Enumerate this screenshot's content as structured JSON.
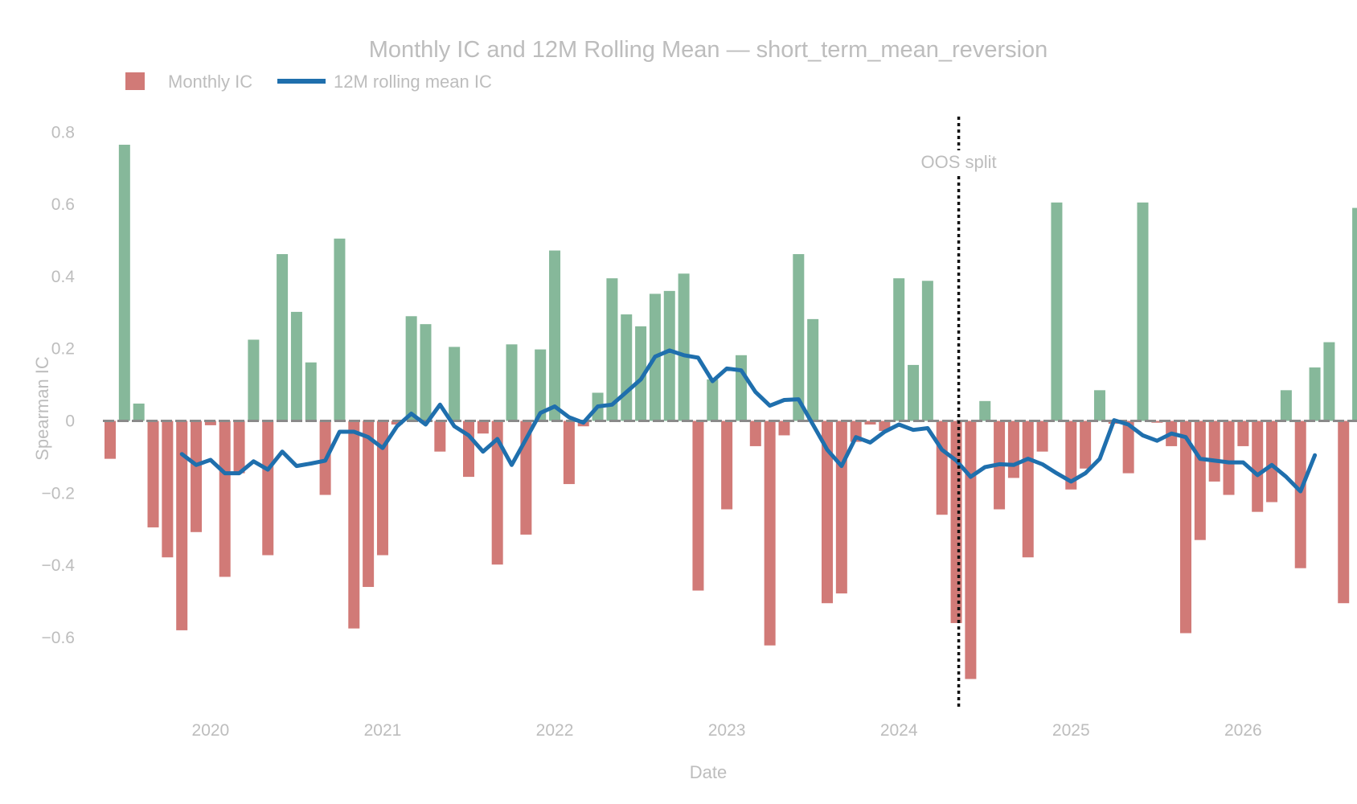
{
  "chart_data": {
    "type": "bar",
    "title": "Monthly IC and 12M Rolling Mean — short_term_mean_reversion",
    "xlabel": "Date",
    "ylabel": "Spearman IC",
    "ylim": [
      -0.8,
      0.85
    ],
    "yticks": [
      0.8,
      0.6,
      0.4,
      0.2,
      0,
      -0.2,
      -0.4,
      -0.6
    ],
    "ytick_labels": [
      "0.8",
      "0.6",
      "0.4",
      "0.2",
      "0",
      "−0.2",
      "−0.4",
      "−0.6"
    ],
    "xticks": [
      "2020-01",
      "2021-01",
      "2022-01",
      "2023-01",
      "2024-01",
      "2025-01",
      "2026-01"
    ],
    "xtick_labels": [
      "2020",
      "2021",
      "2022",
      "2023",
      "2024",
      "2025",
      "2026"
    ],
    "x_start": "2019-06",
    "legend": {
      "placement": "top-left",
      "items": [
        "Monthly IC",
        "12M rolling mean IC"
      ]
    },
    "annotation": {
      "label": "OOS split",
      "date": "2024-05"
    },
    "grid": false,
    "colors": {
      "positive": "#86b89a",
      "negative": "#d17a77",
      "rolling": "#1f6fad",
      "zero_line": "#8a8a8a",
      "text": "#bdbdbd",
      "split_line": "#111111"
    },
    "series": [
      {
        "name": "Monthly IC",
        "values": [
          -0.105,
          0.765,
          0.048,
          -0.295,
          -0.378,
          -0.58,
          -0.308,
          -0.012,
          -0.432,
          -0.145,
          0.225,
          -0.372,
          0.462,
          0.302,
          0.162,
          -0.205,
          0.505,
          -0.575,
          -0.46,
          -0.372,
          -0.01,
          0.29,
          0.268,
          -0.085,
          0.205,
          -0.155,
          -0.035,
          -0.398,
          0.212,
          -0.315,
          0.198,
          0.472,
          -0.175,
          -0.015,
          0.078,
          0.395,
          0.295,
          0.262,
          0.352,
          0.36,
          0.408,
          -0.47,
          0.115,
          -0.245,
          0.182,
          -0.07,
          -0.622,
          -0.04,
          0.462,
          0.282,
          -0.505,
          -0.478,
          -0.058,
          -0.01,
          -0.028,
          0.395,
          0.155,
          0.388,
          -0.26,
          -0.56,
          -0.715,
          0.055,
          -0.245,
          -0.158,
          -0.378,
          -0.085,
          0.605,
          -0.19,
          -0.132,
          0.085,
          -0.008,
          -0.145,
          0.605,
          -0.005,
          -0.07,
          -0.588,
          -0.33,
          -0.168,
          -0.205,
          -0.07,
          -0.252,
          -0.225,
          0.085,
          -0.408,
          0.148,
          0.218,
          -0.505,
          0.59
        ]
      },
      {
        "name": "12M rolling mean IC",
        "start": "2019-11",
        "values": [
          -0.092,
          -0.122,
          -0.108,
          -0.145,
          -0.145,
          -0.112,
          -0.135,
          -0.085,
          -0.125,
          -0.118,
          -0.11,
          -0.03,
          -0.03,
          -0.045,
          -0.075,
          -0.015,
          0.02,
          -0.01,
          0.045,
          -0.015,
          -0.04,
          -0.085,
          -0.05,
          -0.122,
          -0.05,
          0.022,
          0.04,
          0.01,
          -0.005,
          0.04,
          0.045,
          0.08,
          0.115,
          0.178,
          0.195,
          0.182,
          0.175,
          0.11,
          0.145,
          0.14,
          0.08,
          0.042,
          0.058,
          0.06,
          -0.01,
          -0.08,
          -0.125,
          -0.045,
          -0.06,
          -0.03,
          -0.01,
          -0.025,
          -0.02,
          -0.08,
          -0.11,
          -0.155,
          -0.128,
          -0.12,
          -0.122,
          -0.105,
          -0.12,
          -0.145,
          -0.168,
          -0.145,
          -0.105,
          0.002,
          -0.01,
          -0.04,
          -0.055,
          -0.035,
          -0.045,
          -0.105,
          -0.11,
          -0.115,
          -0.115,
          -0.15,
          -0.122,
          -0.155,
          -0.195,
          -0.095
        ]
      }
    ]
  }
}
